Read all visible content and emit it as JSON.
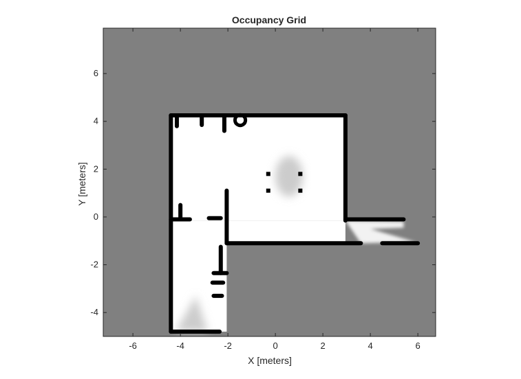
{
  "chart_data": {
    "type": "heatmap",
    "title": "Occupancy Grid",
    "xlabel": "X [meters]",
    "ylabel": "Y [meters]",
    "xlim": [
      -7.25,
      6.75
    ],
    "ylim": [
      -5.0,
      7.9
    ],
    "x_ticks": [
      -6,
      -4,
      -2,
      0,
      2,
      4,
      6
    ],
    "y_ticks": [
      -4,
      -2,
      0,
      2,
      4,
      6
    ],
    "colormap": "gray (0 = free/white, 1 = occupied/black, 0.5 = unknown)",
    "unknown_value": 0.5,
    "free_regions": [
      {
        "name": "main-room",
        "x": [
          -4.4,
          2.95
        ],
        "y": [
          -0.15,
          4.25
        ],
        "value": 0.0
      },
      {
        "name": "lower-right-room",
        "x": [
          -2.05,
          2.95
        ],
        "y": [
          -1.1,
          -0.15
        ],
        "value": 0.0
      },
      {
        "name": "corridor",
        "x": [
          -4.4,
          -2.05
        ],
        "y": [
          -4.8,
          -0.15
        ],
        "value": 0.0
      },
      {
        "name": "right-scan-fan",
        "x": [
          2.95,
          5.5
        ],
        "y": [
          -1.2,
          -0.15
        ],
        "value": 0.05
      }
    ],
    "partial_regions": [
      {
        "name": "central-blob",
        "x": [
          -0.15,
          1.3
        ],
        "y": [
          0.7,
          2.7
        ],
        "value": 0.2
      },
      {
        "name": "corridor-scan-fan",
        "x": [
          -4.2,
          -2.8
        ],
        "y": [
          -4.8,
          -3.3
        ],
        "value": 0.2
      }
    ],
    "occupied_walls": [
      {
        "x": [
          -4.4,
          2.95
        ],
        "y": [
          4.25,
          4.25
        ]
      },
      {
        "x": [
          -4.4,
          -4.4
        ],
        "y": [
          -4.8,
          4.25
        ]
      },
      {
        "x": [
          2.95,
          2.95
        ],
        "y": [
          -0.15,
          4.25
        ]
      },
      {
        "x": [
          -2.05,
          -2.05
        ],
        "y": [
          -1.1,
          1.1
        ]
      },
      {
        "x": [
          -2.05,
          3.6
        ],
        "y": [
          -1.1,
          -1.1
        ]
      },
      {
        "x": [
          2.95,
          5.4
        ],
        "y": [
          -0.1,
          -0.1
        ]
      },
      {
        "x": [
          4.5,
          6.0
        ],
        "y": [
          -1.1,
          -1.1
        ]
      },
      {
        "x": [
          -4.4,
          -3.6
        ],
        "y": [
          -0.1,
          -0.1
        ]
      },
      {
        "x": [
          -2.8,
          -2.3
        ],
        "y": [
          -0.05,
          -0.05
        ]
      },
      {
        "x": [
          -4.0,
          -4.0
        ],
        "y": [
          -0.1,
          0.5
        ]
      },
      {
        "x": [
          -4.4,
          -2.35
        ],
        "y": [
          -4.8,
          -4.8
        ]
      },
      {
        "x": [
          -2.3,
          -2.3
        ],
        "y": [
          -2.35,
          -1.25
        ]
      },
      {
        "x": [
          -2.6,
          -2.05
        ],
        "y": [
          -2.35,
          -2.35
        ]
      },
      {
        "x": [
          -2.65,
          -2.2
        ],
        "y": [
          -2.75,
          -2.75
        ]
      },
      {
        "x": [
          -2.6,
          -2.25
        ],
        "y": [
          -3.3,
          -3.3
        ]
      },
      {
        "x": [
          -4.15,
          -4.15
        ],
        "y": [
          3.8,
          4.25
        ]
      },
      {
        "x": [
          -3.1,
          -3.1
        ],
        "y": [
          3.85,
          4.25
        ]
      },
      {
        "x": [
          -2.15,
          -2.15
        ],
        "y": [
          3.6,
          4.25
        ]
      }
    ],
    "occupied_points": [
      {
        "x": -0.3,
        "y": 1.8
      },
      {
        "x": 1.05,
        "y": 1.8
      },
      {
        "x": -0.3,
        "y": 1.1
      },
      {
        "x": 1.05,
        "y": 1.1
      }
    ]
  }
}
